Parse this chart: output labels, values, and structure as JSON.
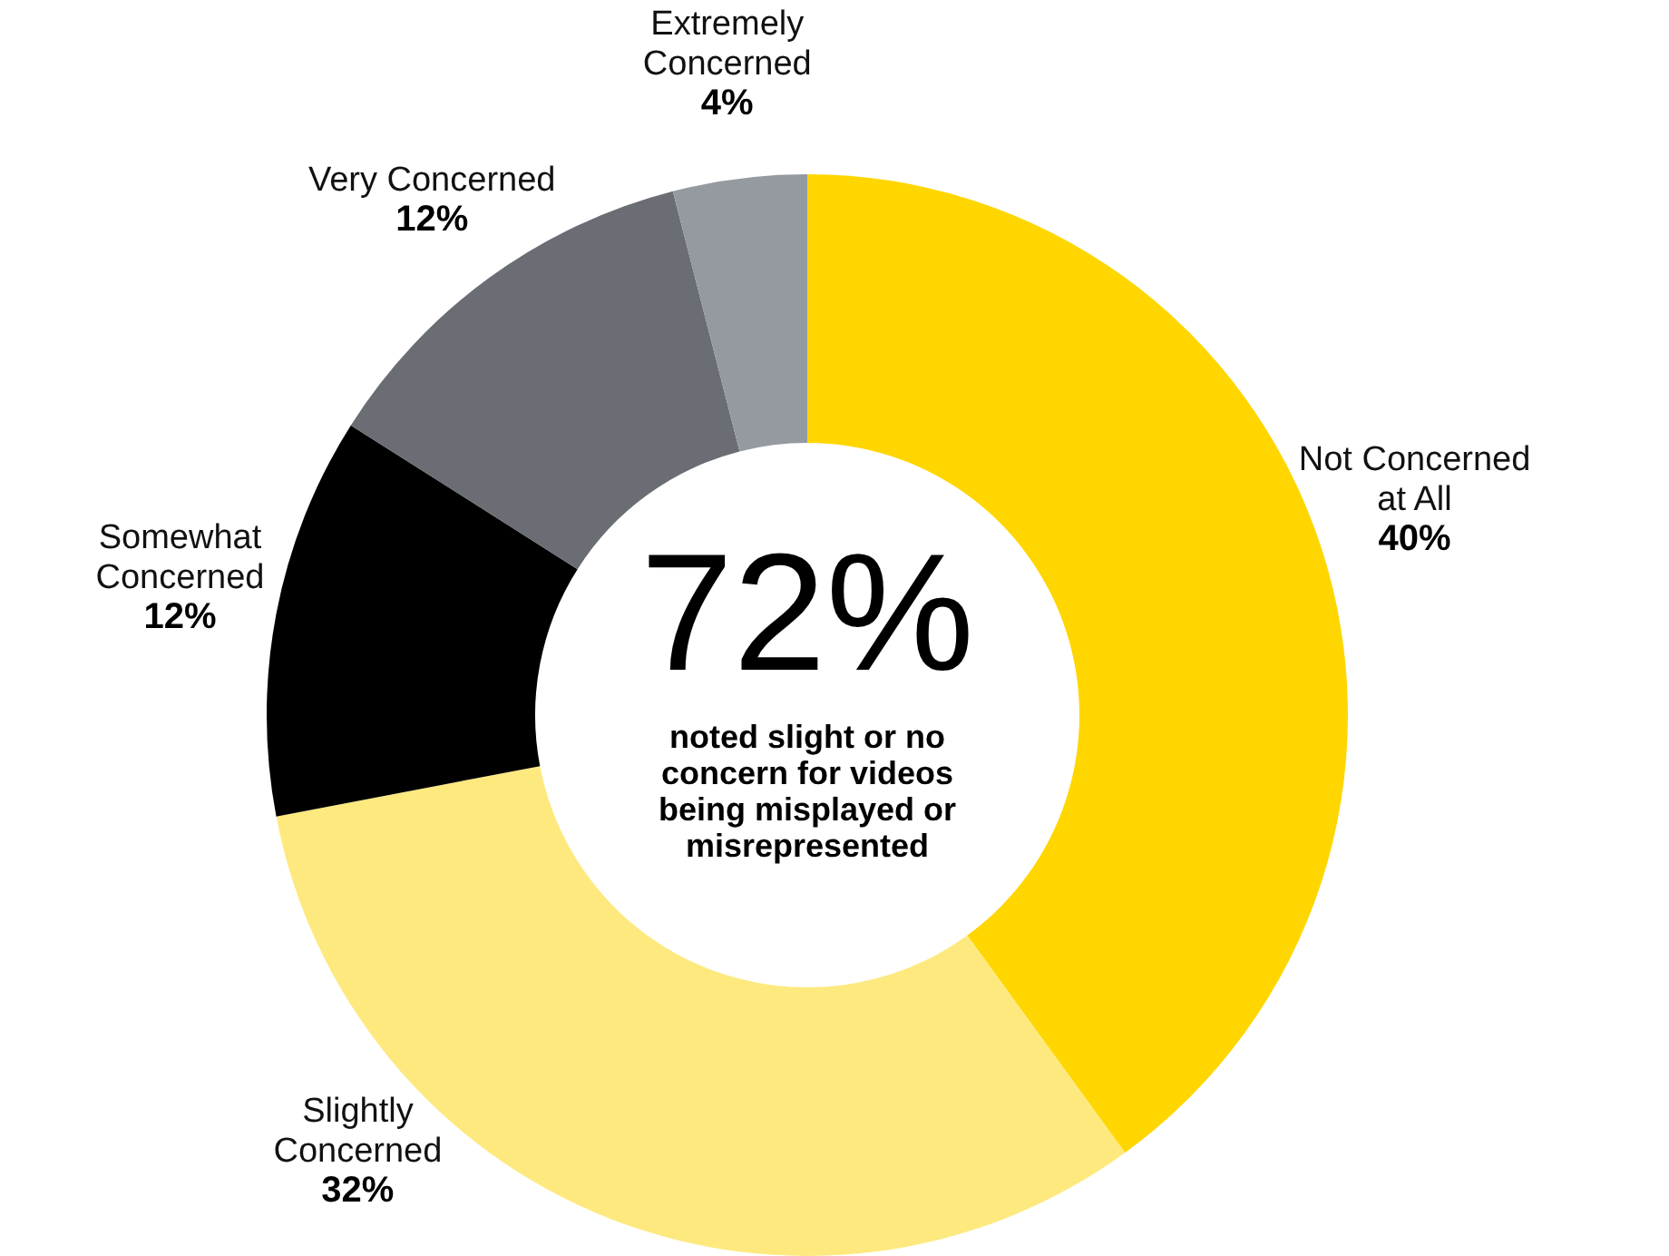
{
  "chart_data": {
    "type": "donut",
    "categories": [
      "Not Concerned at All",
      "Slightly Concerned",
      "Somewhat Concerned",
      "Very Concerned",
      "Extremely Concerned"
    ],
    "values": [
      40,
      32,
      12,
      12,
      4
    ],
    "colors": [
      "#ffd600",
      "#fee97f",
      "#000000",
      "#6a6d73",
      "#959aa0"
    ],
    "value_labels": [
      "40%",
      "32%",
      "12%",
      "12%",
      "4%"
    ],
    "annotations": [
      "72%",
      "noted slight or no concern for videos being misplayed or misrepresented"
    ]
  }
}
